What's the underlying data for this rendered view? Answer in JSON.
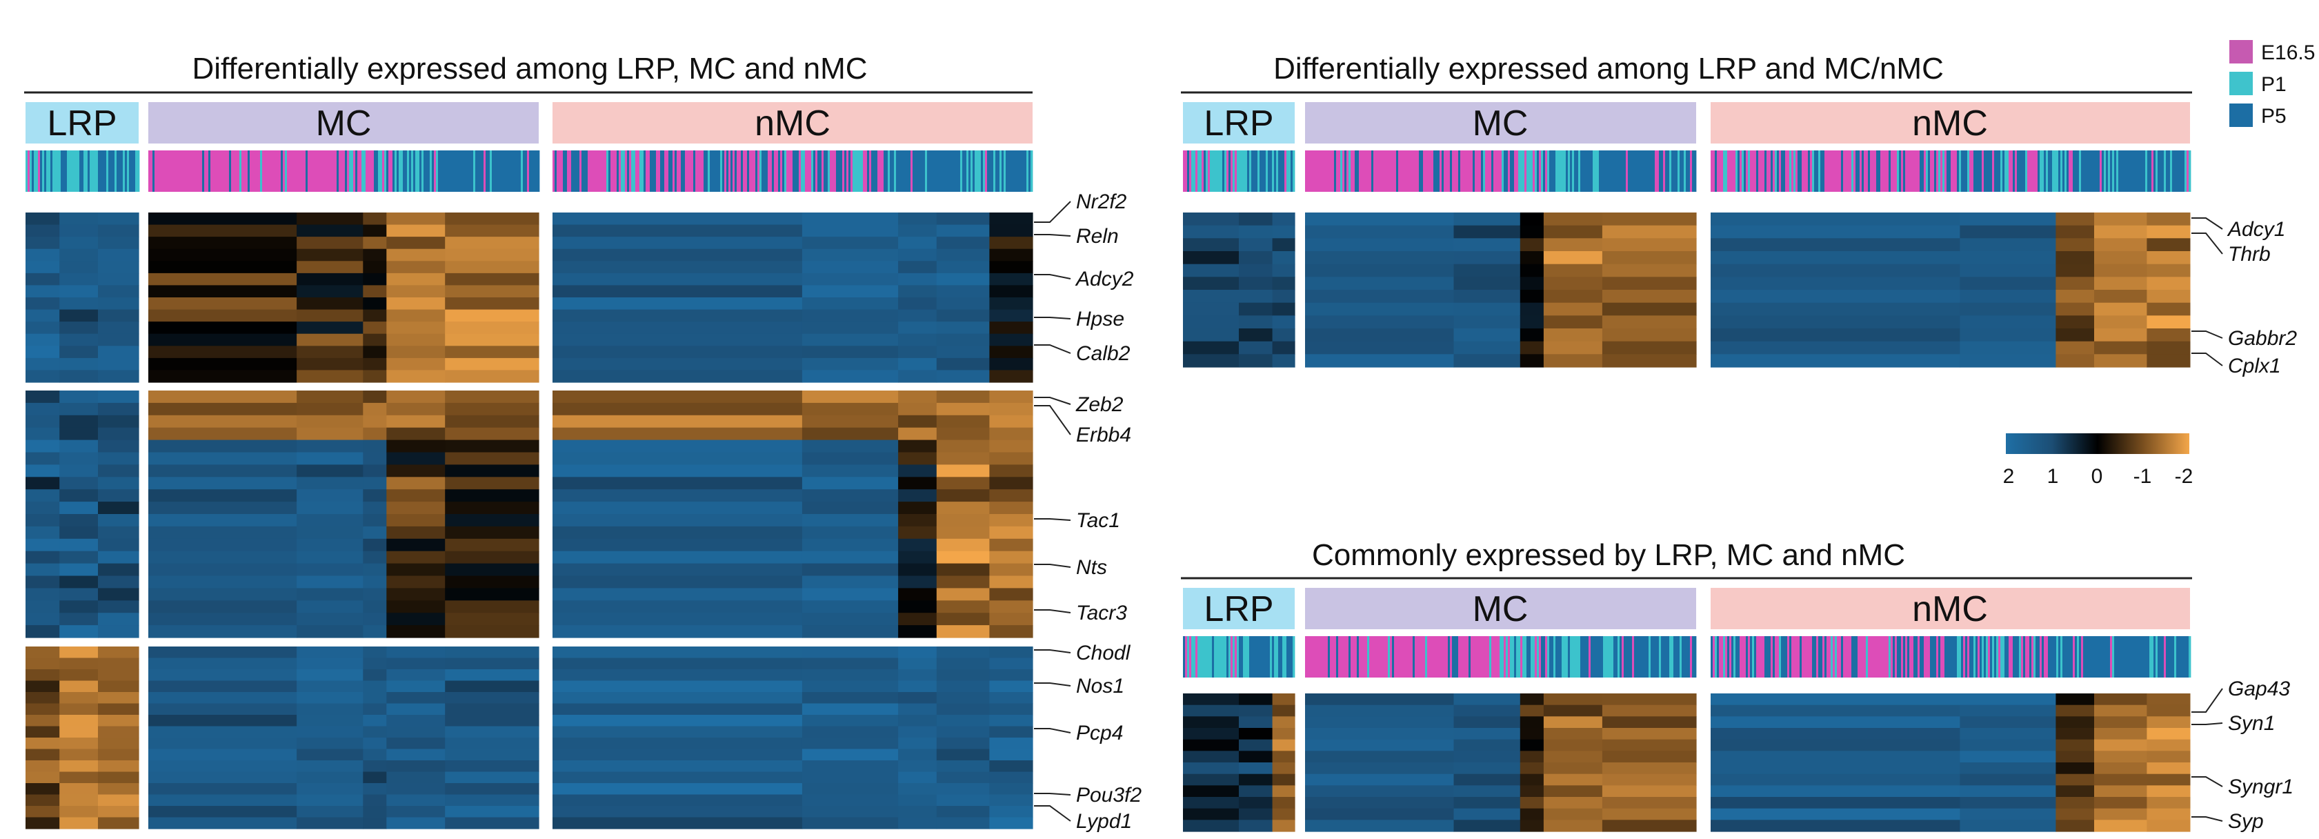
{
  "chart_data": {
    "type": "heatmap",
    "colorbar": {
      "ticks": [
        "2",
        "1",
        "0",
        "-1",
        "-2"
      ],
      "stops": [
        "#1F6FA5",
        "#1C4E75",
        "#000000",
        "#7A4F1F",
        "#F3A64A"
      ]
    },
    "legend": [
      {
        "label": "E16.5",
        "color": "#C65AB1"
      },
      {
        "label": "P1",
        "color": "#3FC3CC"
      },
      {
        "label": "P5",
        "color": "#1C6EA4"
      }
    ],
    "stage_colors": [
      "#DD4DB8",
      "#3CC3CC",
      "#1C6EA4"
    ],
    "panels": [
      {
        "title": "Differentially expressed among LRP, MC and nMC",
        "groups": [
          {
            "label": "LRP",
            "color": "#A7E0F3"
          },
          {
            "label": "MC",
            "color": "#C9C3E3"
          },
          {
            "label": "nMC",
            "color": "#F7C9C6"
          }
        ],
        "gene_labels": [
          "Nr2f2",
          "Reln",
          "Adcy2",
          "Hpse",
          "Calb2",
          "Zeb2",
          "Erbb4",
          "Tac1",
          "Nts",
          "Tacr3",
          "Chodl",
          "Nos1",
          "Pcp4",
          "Pou3f2",
          "Lypd1"
        ]
      },
      {
        "title": "Differentially expressed among LRP and MC/nMC",
        "groups": [
          {
            "label": "LRP",
            "color": "#A7E0F3"
          },
          {
            "label": "MC",
            "color": "#C9C3E3"
          },
          {
            "label": "nMC",
            "color": "#F7C9C6"
          }
        ],
        "gene_labels": [
          "Adcy1",
          "Thrb",
          "Gabbr2",
          "Cplx1"
        ]
      },
      {
        "title": "Commonly expressed by LRP, MC and nMC",
        "groups": [
          {
            "label": "LRP",
            "color": "#A7E0F3"
          },
          {
            "label": "MC",
            "color": "#C9C3E3"
          },
          {
            "label": "nMC",
            "color": "#F7C9C6"
          }
        ],
        "gene_labels": [
          "Gap43",
          "Syn1",
          "Syngr1",
          "Syp"
        ]
      }
    ]
  }
}
